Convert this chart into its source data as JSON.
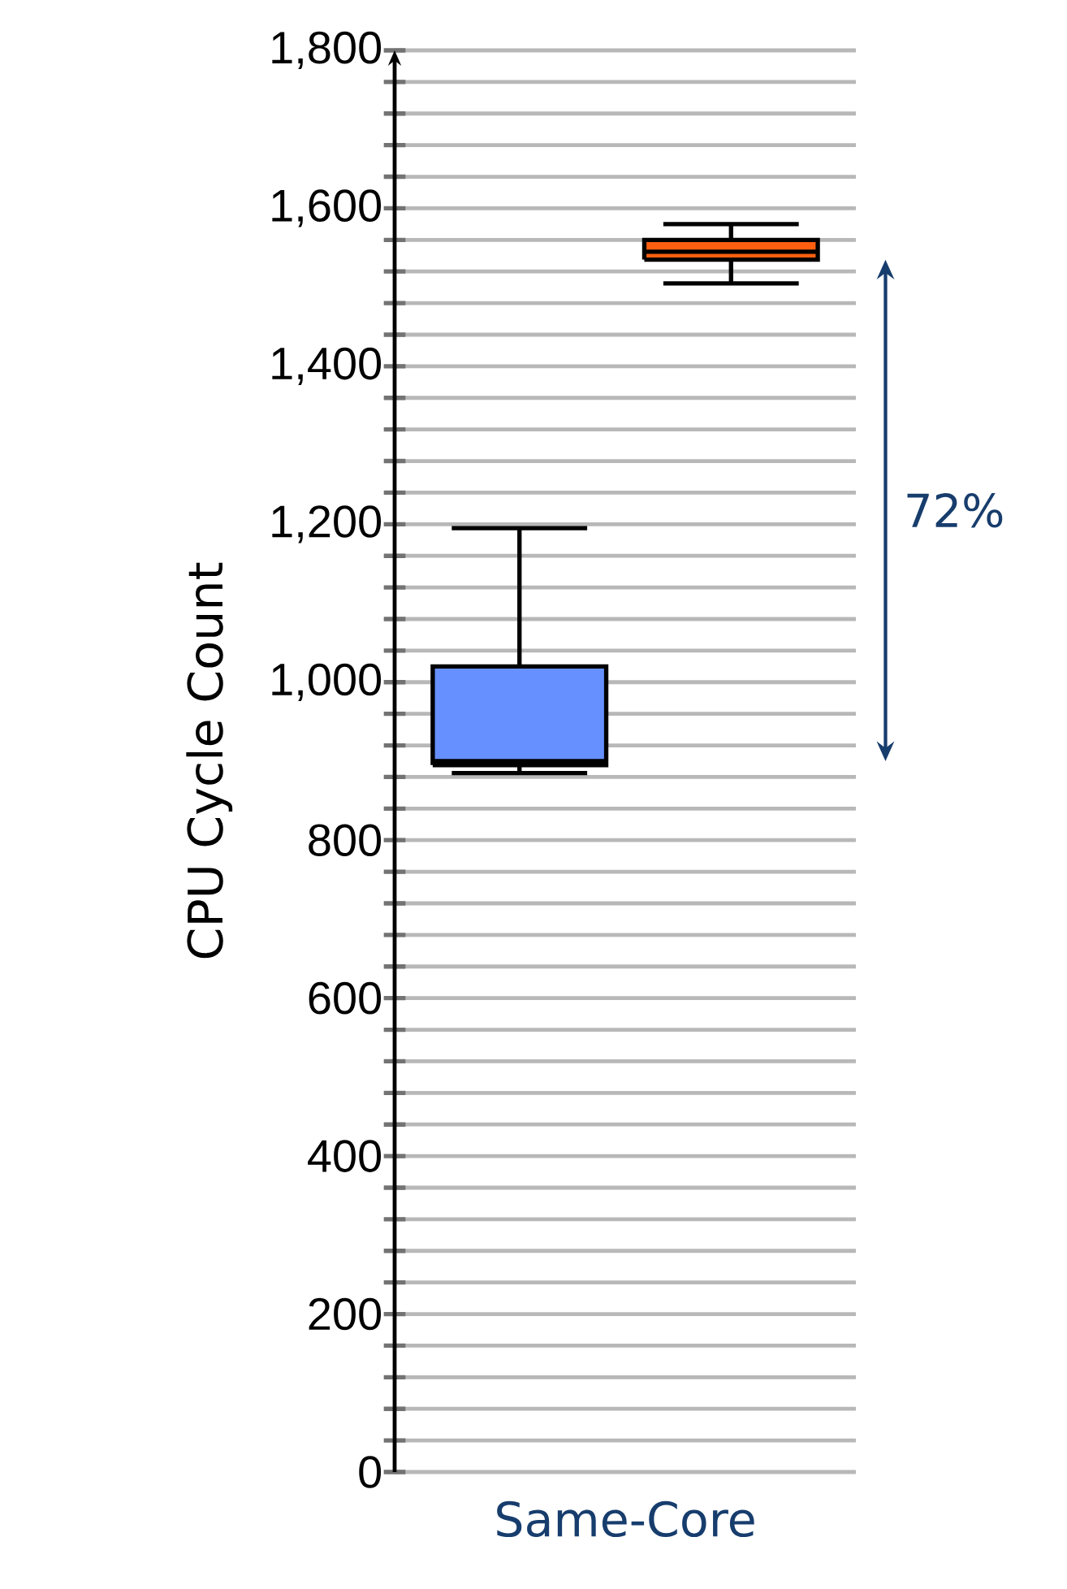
{
  "chart_data": {
    "type": "box",
    "ylabel": "CPU Cycle Count",
    "xlabel": "Same-Core",
    "categories": [
      null,
      null
    ],
    "colors": [
      "#6690ff",
      "#ff5f0f"
    ],
    "boxes": [
      {
        "low": 885,
        "q1": 895,
        "median": 900,
        "q3": 1020,
        "high": 1195
      },
      {
        "low": 1505,
        "q1": 1535,
        "median": 1545,
        "q3": 1560,
        "high": 1580
      }
    ],
    "ylim": [
      0,
      1800
    ],
    "yticks": [
      0,
      {
        "value": 40,
        "label": null
      },
      {
        "value": 80,
        "label": null
      },
      {
        "value": 120,
        "label": null
      },
      {
        "value": 160,
        "label": null
      },
      200,
      {
        "value": 240,
        "label": null
      },
      {
        "value": 280,
        "label": null
      },
      {
        "value": 320,
        "label": null
      },
      {
        "value": 360,
        "label": null
      },
      400,
      {
        "value": 440,
        "label": null
      },
      {
        "value": 480,
        "label": null
      },
      {
        "value": 520,
        "label": null
      },
      {
        "value": 560,
        "label": null
      },
      600,
      {
        "value": 640,
        "label": null
      },
      {
        "value": 680,
        "label": null
      },
      {
        "value": 720,
        "label": null
      },
      {
        "value": 760,
        "label": null
      },
      800,
      {
        "value": 840,
        "label": null
      },
      {
        "value": 880,
        "label": null
      },
      {
        "value": 920,
        "label": null
      },
      {
        "value": 960,
        "label": null
      },
      {
        "value": 1000,
        "label": "1,000"
      },
      {
        "value": 1040,
        "label": null
      },
      {
        "value": 1080,
        "label": null
      },
      {
        "value": 1120,
        "label": null
      },
      {
        "value": 1160,
        "label": null
      },
      {
        "value": 1200,
        "label": "1,200"
      },
      {
        "value": 1240,
        "label": null
      },
      {
        "value": 1280,
        "label": null
      },
      {
        "value": 1320,
        "label": null
      },
      {
        "value": 1360,
        "label": null
      },
      {
        "value": 1400,
        "label": "1,400"
      },
      {
        "value": 1440,
        "label": null
      },
      {
        "value": 1480,
        "label": null
      },
      {
        "value": 1520,
        "label": null
      },
      {
        "value": 1560,
        "label": null
      },
      {
        "value": 1600,
        "label": "1,600"
      },
      {
        "value": 1640,
        "label": null
      },
      {
        "value": 1680,
        "label": null
      },
      {
        "value": 1720,
        "label": null
      },
      {
        "value": 1760,
        "label": null
      },
      {
        "value": 1800,
        "label": "1,800"
      }
    ],
    "grid": "y",
    "annotations": [
      "72%"
    ]
  }
}
